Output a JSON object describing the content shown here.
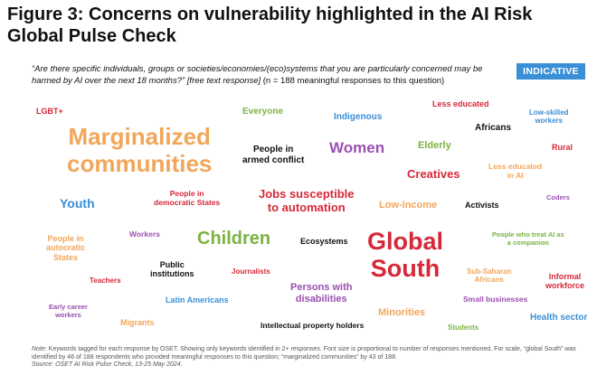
{
  "title": "Figure 3: Concerns on vulnerability highlighted in the AI Risk Global Pulse Check",
  "question": {
    "italic_text": "“Are there specific individuals, groups or societies/economies/(eco)systems that you are particularly concerned may be harmed by AI over the next 18 months?” [free text response]",
    "suffix": " (n = 188 meaningful responses to this question)"
  },
  "badge": {
    "label": "INDICATIVE",
    "color": "#3a8fd6"
  },
  "keywords": [
    {
      "text": "LGBT+",
      "color": "#d62839"
    },
    {
      "text": "Everyone",
      "color": "#7cb342"
    },
    {
      "text": "Indigenous",
      "color": "#3a8fd6"
    },
    {
      "text": "Less educated",
      "color": "#d62839"
    },
    {
      "text": "Low-skilled\nworkers",
      "color": "#3a8fd6"
    },
    {
      "text": "Marginalized\ncommunities",
      "color": "#f2a65a"
    },
    {
      "text": "People in\narmed conflict",
      "color": "#111111"
    },
    {
      "text": "Women",
      "color": "#9b4fb0"
    },
    {
      "text": "Elderly",
      "color": "#7cb342"
    },
    {
      "text": "Africans",
      "color": "#111111"
    },
    {
      "text": "Rural",
      "color": "#d62839"
    },
    {
      "text": "Creatives",
      "color": "#d62839"
    },
    {
      "text": "Less educated\nin AI",
      "color": "#f2a65a"
    },
    {
      "text": "Youth",
      "color": "#3a8fd6"
    },
    {
      "text": "People in\ndemocratic States",
      "color": "#d62839"
    },
    {
      "text": "Jobs susceptible\nto automation",
      "color": "#d62839"
    },
    {
      "text": "Low-income",
      "color": "#f2a65a"
    },
    {
      "text": "Activists",
      "color": "#111111"
    },
    {
      "text": "Coders",
      "color": "#9b4fb0"
    },
    {
      "text": "People in\nautocratic\nStates",
      "color": "#f2a65a"
    },
    {
      "text": "Workers",
      "color": "#9b4fb0"
    },
    {
      "text": "Children",
      "color": "#7cb342"
    },
    {
      "text": "Ecosystems",
      "color": "#111111"
    },
    {
      "text": "Global\nSouth",
      "color": "#d62839"
    },
    {
      "text": "People who treat AI as\na companion",
      "color": "#7cb342"
    },
    {
      "text": "Public\ninstitutions",
      "color": "#111111"
    },
    {
      "text": "Journalists",
      "color": "#d62839"
    },
    {
      "text": "Teachers",
      "color": "#d62839"
    },
    {
      "text": "Persons with\ndisabilities",
      "color": "#9b4fb0"
    },
    {
      "text": "Sub-Saharan\nAfricans",
      "color": "#f2a65a"
    },
    {
      "text": "Informal\nworkforce",
      "color": "#d62839"
    },
    {
      "text": "Latin Americans",
      "color": "#3a8fd6"
    },
    {
      "text": "Small businesses",
      "color": "#9b4fb0"
    },
    {
      "text": "Early career\nworkers",
      "color": "#9b4fb0"
    },
    {
      "text": "Minorities",
      "color": "#f2a65a"
    },
    {
      "text": "Health sector",
      "color": "#3a8fd6"
    },
    {
      "text": "Migrants",
      "color": "#f2a65a"
    },
    {
      "text": "Intellectual property holders",
      "color": "#111111"
    },
    {
      "text": "Students",
      "color": "#7cb342"
    }
  ],
  "footnote": {
    "note_label": "Note:",
    "note_text": " Keywords tagged for each response by OSET. Showing only keywords identified in 2+ responses. Font size is proportional to number of responses mentioned. For scale, “global South” was identified by 46 of 188 respondents who provided meaningful responses to this question; “marginalized communities” by 43 of 188.",
    "source_text": "Source: OSET AI Risk Pulse Check, 13-25 May 2024."
  }
}
